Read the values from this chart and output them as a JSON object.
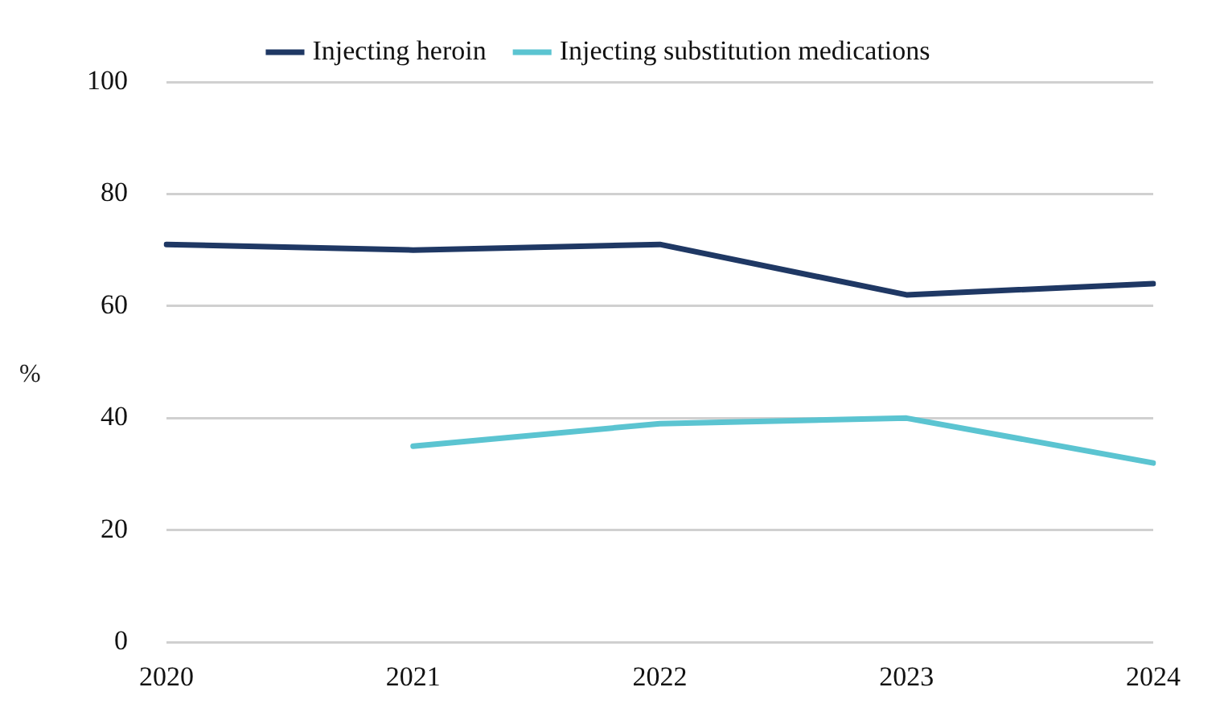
{
  "chart_data": {
    "type": "line",
    "ylabel": "%",
    "categories": [
      "2020",
      "2021",
      "2022",
      "2023",
      "2024"
    ],
    "series": [
      {
        "name": "Injecting heroin",
        "color": "#1f3864",
        "values": [
          71,
          70,
          71,
          62,
          64
        ]
      },
      {
        "name": "Injecting substitution medications",
        "color": "#5bc4d1",
        "values": [
          null,
          35,
          39,
          40,
          32
        ]
      }
    ],
    "ylim": [
      0,
      100
    ],
    "yticks": [
      0,
      20,
      40,
      60,
      80,
      100
    ],
    "grid": "y",
    "legend": "top",
    "marker": "none",
    "line_style": "solid"
  }
}
